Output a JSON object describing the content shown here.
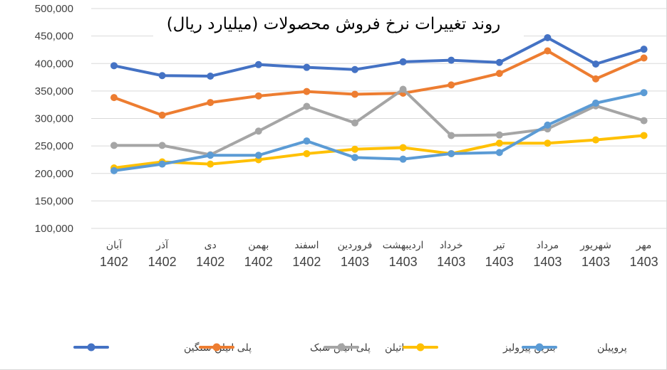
{
  "chart_data": {
    "type": "line",
    "title": "روند تغییرات نرخ فروش محصولات (میلیارد ریال)",
    "xlabel": "",
    "ylabel": "",
    "ylim": [
      100000,
      500000
    ],
    "yticks": [
      100000,
      150000,
      200000,
      250000,
      300000,
      350000,
      400000,
      450000,
      500000
    ],
    "ytick_labels": [
      "100,000",
      "150,000",
      "200,000",
      "250,000",
      "300,000",
      "350,000",
      "400,000",
      "450,000",
      "500,000"
    ],
    "grid": true,
    "legend_position": "bottom",
    "categories": [
      {
        "month": "آبان",
        "year": "1402"
      },
      {
        "month": "آذر",
        "year": "1402"
      },
      {
        "month": "دی",
        "year": "1402"
      },
      {
        "month": "بهمن",
        "year": "1402"
      },
      {
        "month": "اسفند",
        "year": "1402"
      },
      {
        "month": "فروردین",
        "year": "1403"
      },
      {
        "month": "اردیبهشت",
        "year": "1403"
      },
      {
        "month": "خرداد",
        "year": "1403"
      },
      {
        "month": "تیر",
        "year": "1403"
      },
      {
        "month": "مرداد",
        "year": "1403"
      },
      {
        "month": "شهریور",
        "year": "1403"
      },
      {
        "month": "مهر",
        "year": "1403"
      }
    ],
    "series": [
      {
        "name": "پلی اتیلن سنگین",
        "color": "#4472c4",
        "values": [
          396000,
          378000,
          377000,
          398000,
          393000,
          389000,
          403000,
          406000,
          402000,
          447000,
          399000,
          426000
        ]
      },
      {
        "name": "پلی اتیلن سبک",
        "color": "#ed7d31",
        "values": [
          338000,
          306000,
          329000,
          341000,
          349000,
          344000,
          346000,
          361000,
          382000,
          423000,
          372000,
          410000
        ]
      },
      {
        "name": "اتیلن",
        "color": "#a5a5a5",
        "values": [
          251000,
          251000,
          234000,
          277000,
          322000,
          292000,
          353000,
          269000,
          270000,
          281000,
          323000,
          296000
        ]
      },
      {
        "name": "بنزین پیرولیز",
        "color": "#ffc000",
        "values": [
          210000,
          221000,
          217000,
          225000,
          236000,
          244000,
          247000,
          236000,
          255000,
          255000,
          261000,
          269000
        ]
      },
      {
        "name": "پروپیلن",
        "color": "#5b9bd5",
        "values": [
          205000,
          217000,
          233000,
          233000,
          259000,
          229000,
          226000,
          236000,
          238000,
          288000,
          328000,
          347000
        ]
      }
    ]
  }
}
